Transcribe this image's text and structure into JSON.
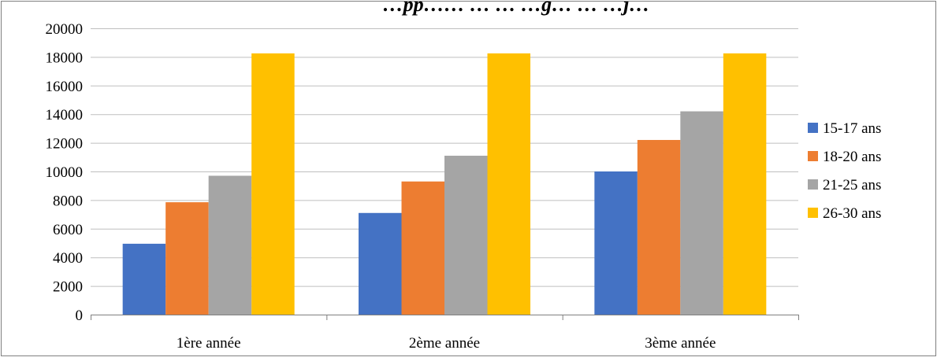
{
  "chart_data": {
    "type": "bar",
    "title": "…pp…… … … …g… … …j…",
    "xlabel": "",
    "ylabel": "",
    "categories": [
      "1ère année",
      "2ème année",
      "3ème année"
    ],
    "series": [
      {
        "name": "15-17 ans",
        "values": [
          4950,
          7100,
          10000
        ],
        "color": "#4472C4"
      },
      {
        "name": "18-20 ans",
        "values": [
          7850,
          9300,
          12200
        ],
        "color": "#ED7D31"
      },
      {
        "name": "21-25 ans",
        "values": [
          9700,
          11100,
          14200
        ],
        "color": "#A5A5A5"
      },
      {
        "name": "26-30 ans",
        "values": [
          18250,
          18250,
          18250
        ],
        "color": "#FFC000"
      }
    ],
    "ylim": [
      0,
      20000
    ],
    "ytick_step": 2000,
    "grid": true,
    "legend": "right",
    "gridline_color": "#bfbfbf",
    "frame_color": "#808080"
  }
}
